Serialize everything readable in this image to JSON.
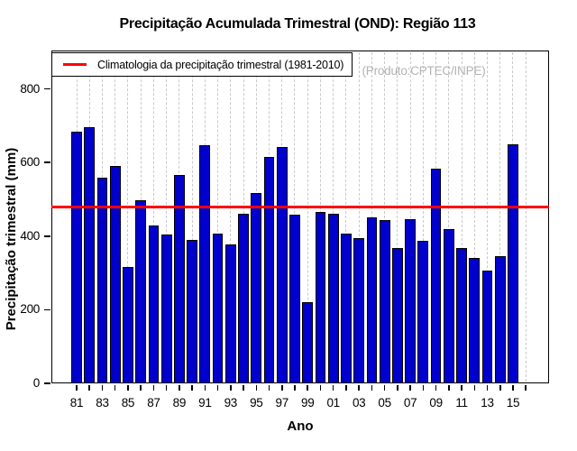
{
  "colors": {
    "bar_fill": "#0000CD",
    "bar_border": "#000000",
    "climatology_line": "#FF0000",
    "grid": "#C9C9C9",
    "annotation_text": "#B3B3B3",
    "text": "#000000"
  },
  "chart_data": {
    "type": "bar",
    "title": "Precipitação Acumulada Trimestral (OND): Região 113",
    "xlabel": "Ano",
    "ylabel": "Precipitação trimestral (mm)",
    "ylim": [
      0,
      900
    ],
    "yticks": [
      0,
      200,
      400,
      600,
      800
    ],
    "grid": "vertical-dashed",
    "legend_position": "topleft",
    "legend": "Climatologia da precipitação trimestral (1981-2010)",
    "annotation": "(Produto:CPTEC/INPE)",
    "climatology_value": 478,
    "years": [
      "1981",
      "1982",
      "1983",
      "1984",
      "1985",
      "1986",
      "1987",
      "1988",
      "1989",
      "1990",
      "1991",
      "1992",
      "1993",
      "1994",
      "1995",
      "1996",
      "1997",
      "1998",
      "1999",
      "2000",
      "2001",
      "2002",
      "2003",
      "2004",
      "2005",
      "2006",
      "2007",
      "2008",
      "2009",
      "2010",
      "2011",
      "2012",
      "2013",
      "2014",
      "2015"
    ],
    "x_tick_labels": [
      "81",
      "83",
      "85",
      "87",
      "89",
      "91",
      "93",
      "95",
      "97",
      "99",
      "01",
      "03",
      "05",
      "07",
      "09",
      "11",
      "13",
      "15"
    ],
    "values": [
      685,
      695,
      560,
      590,
      315,
      497,
      428,
      404,
      567,
      390,
      648,
      406,
      378,
      462,
      518,
      616,
      643,
      458,
      221,
      466,
      462,
      408,
      395,
      450,
      443,
      367,
      446,
      388,
      584,
      418,
      367,
      340,
      306,
      345,
      650
    ]
  }
}
